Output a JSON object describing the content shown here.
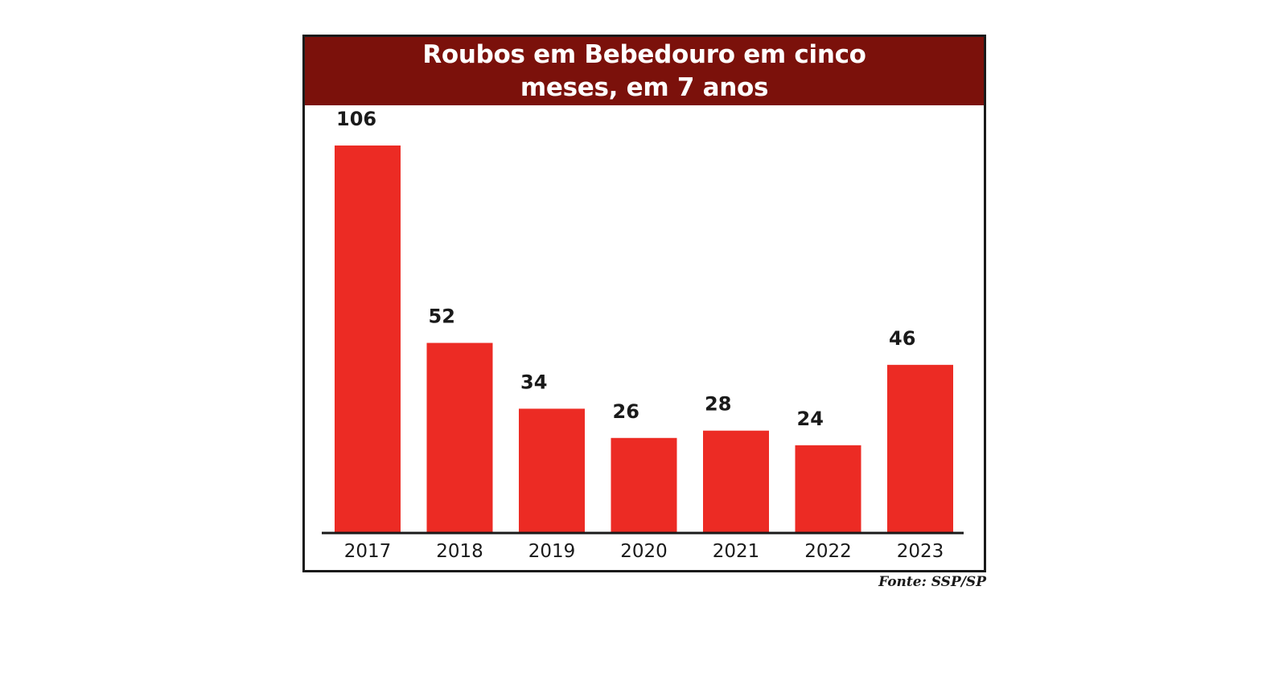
{
  "chart_data": {
    "type": "bar",
    "title": "Roubos em Bebedouro em cinco meses, em 7 anos",
    "categories": [
      "2017",
      "2018",
      "2019",
      "2020",
      "2021",
      "2022",
      "2023"
    ],
    "values": [
      106,
      52,
      34,
      26,
      28,
      24,
      46
    ],
    "value_labels": [
      "106",
      "52",
      "34",
      "26",
      "28",
      "24",
      "46"
    ],
    "xlabel": "",
    "ylabel": "",
    "ylim": [
      0,
      106
    ],
    "grid": false,
    "legend": "none",
    "colors": {
      "bar": "#ec2b24",
      "title_background": "#7b110b",
      "title_text": "#ffffff",
      "axis": "#1a1a1a"
    }
  },
  "source": "Fonte: SSP/SP"
}
